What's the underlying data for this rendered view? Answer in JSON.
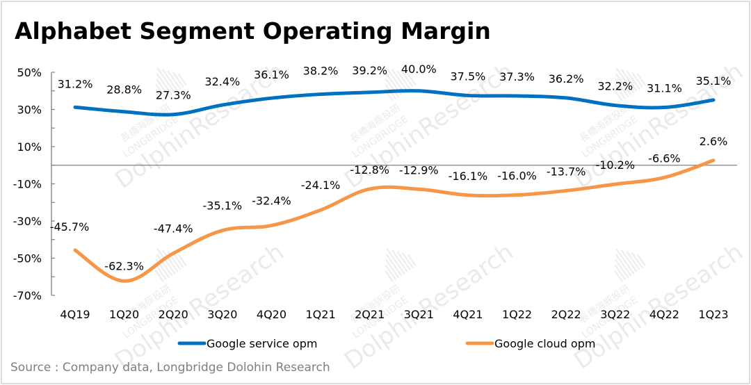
{
  "title": "Alphabet Segment Operating Margin",
  "source": "Source : Company data,  Longbridge Dolohin Research",
  "watermark": {
    "line1": "長橋海豚投研",
    "line2": "LONGBRIDGE",
    "line3": "DolphinResearch"
  },
  "colors": {
    "google_service": "#0070C0",
    "google_cloud": "#F79646",
    "axis": "#7f7f7f",
    "border": "#dcdcdc",
    "source_text": "#7f7f7f"
  },
  "chart_data": {
    "type": "line",
    "title": "Alphabet Segment Operating Margin",
    "xlabel": "",
    "ylabel": "",
    "categories": [
      "4Q19",
      "1Q20",
      "2Q20",
      "3Q20",
      "4Q20",
      "1Q21",
      "2Q21",
      "3Q21",
      "4Q21",
      "1Q22",
      "2Q22",
      "3Q22",
      "4Q22",
      "1Q23"
    ],
    "ylim": [
      -70,
      50
    ],
    "yticks": [
      50,
      30,
      10,
      -10,
      -30,
      -50,
      -70
    ],
    "ytick_labels": [
      "50%",
      "30%",
      "10%",
      "-10%",
      "-30%",
      "-50%",
      "-70%"
    ],
    "minor_tick_step": 10,
    "grid": false,
    "zero_line": true,
    "legend_position": "bottom",
    "smooth": true,
    "series": [
      {
        "name": "Google service opm",
        "color": "#0070C0",
        "values": [
          31.2,
          28.8,
          27.3,
          32.4,
          36.1,
          38.2,
          39.2,
          40.0,
          37.5,
          37.3,
          36.2,
          32.2,
          31.1,
          35.1
        ],
        "labels": [
          "31.2%",
          "28.8%",
          "27.3%",
          "32.4%",
          "36.1%",
          "38.2%",
          "39.2%",
          "40.0%",
          "37.5%",
          "37.3%",
          "36.2%",
          "32.2%",
          "31.1%",
          "35.1%"
        ]
      },
      {
        "name": "Google cloud opm",
        "color": "#F79646",
        "values": [
          -45.7,
          -62.3,
          -47.4,
          -35.1,
          -32.4,
          -24.1,
          -12.8,
          -12.9,
          -16.1,
          -16.0,
          -13.7,
          -10.2,
          -6.6,
          2.6
        ],
        "labels": [
          "-45.7%",
          "-62.3%",
          "-47.4%",
          "-35.1%",
          "-32.4%",
          "-24.1%",
          "-12.8%",
          "-12.9%",
          "-16.1%",
          "-16.0%",
          "-13.7%",
          "-10.2%",
          "-6.6%",
          "2.6%"
        ]
      }
    ]
  }
}
